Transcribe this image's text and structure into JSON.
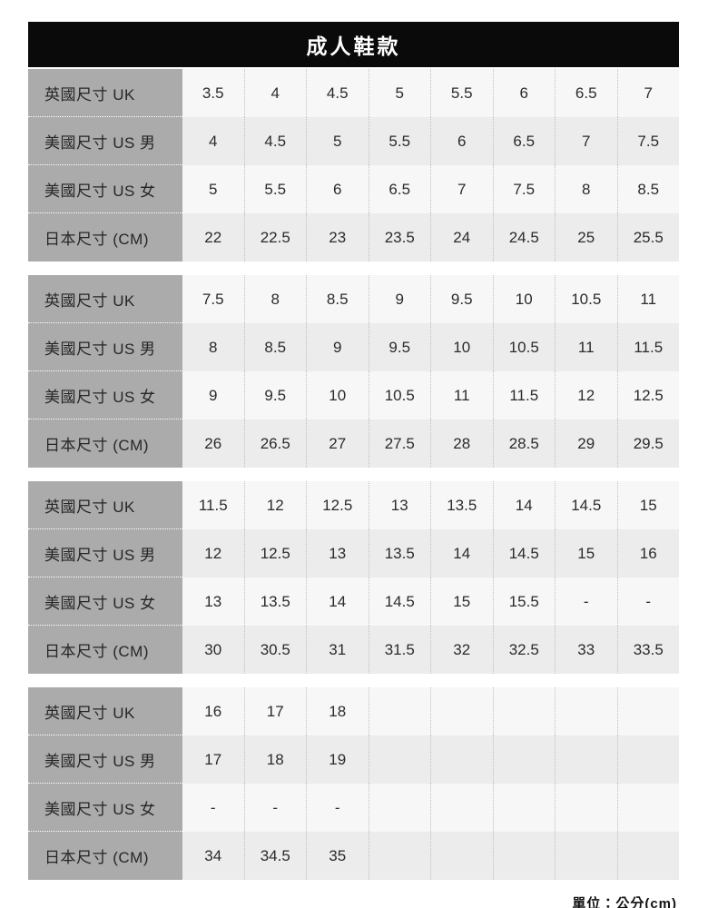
{
  "header": {
    "title": "成人鞋款"
  },
  "footer": {
    "unit_note": "單位：公分(cm)"
  },
  "colors": {
    "header_bg": "#0a0a0a",
    "header_text": "#ffffff",
    "label_bg": "#ababab",
    "label_text": "#262626",
    "row_odd_bg": "#f7f7f7",
    "row_even_bg": "#ececec",
    "divider": "#bfbfbf",
    "value_text": "#2b2b2b"
  },
  "chart_data": {
    "type": "table",
    "title": "成人鞋款",
    "unit_note": "單位：公分(cm)",
    "row_labels": [
      "英國尺寸 UK",
      "美國尺寸 US 男",
      "美國尺寸 US 女",
      "日本尺寸 (CM)"
    ],
    "row_keys": [
      "uk",
      "us-men",
      "us-women",
      "jp-cm"
    ],
    "columns_per_block": 8,
    "blocks": [
      [
        [
          "3.5",
          "4",
          "4.5",
          "5",
          "5.5",
          "6",
          "6.5",
          "7"
        ],
        [
          "4",
          "4.5",
          "5",
          "5.5",
          "6",
          "6.5",
          "7",
          "7.5"
        ],
        [
          "5",
          "5.5",
          "6",
          "6.5",
          "7",
          "7.5",
          "8",
          "8.5"
        ],
        [
          "22",
          "22.5",
          "23",
          "23.5",
          "24",
          "24.5",
          "25",
          "25.5"
        ]
      ],
      [
        [
          "7.5",
          "8",
          "8.5",
          "9",
          "9.5",
          "10",
          "10.5",
          "11"
        ],
        [
          "8",
          "8.5",
          "9",
          "9.5",
          "10",
          "10.5",
          "11",
          "11.5"
        ],
        [
          "9",
          "9.5",
          "10",
          "10.5",
          "11",
          "11.5",
          "12",
          "12.5"
        ],
        [
          "26",
          "26.5",
          "27",
          "27.5",
          "28",
          "28.5",
          "29",
          "29.5"
        ]
      ],
      [
        [
          "11.5",
          "12",
          "12.5",
          "13",
          "13.5",
          "14",
          "14.5",
          "15"
        ],
        [
          "12",
          "12.5",
          "13",
          "13.5",
          "14",
          "14.5",
          "15",
          "16"
        ],
        [
          "13",
          "13.5",
          "14",
          "14.5",
          "15",
          "15.5",
          "-",
          "-"
        ],
        [
          "30",
          "30.5",
          "31",
          "31.5",
          "32",
          "32.5",
          "33",
          "33.5"
        ]
      ],
      [
        [
          "16",
          "17",
          "18",
          "",
          "",
          "",
          "",
          ""
        ],
        [
          "17",
          "18",
          "19",
          "",
          "",
          "",
          "",
          ""
        ],
        [
          "-",
          "-",
          "-",
          "",
          "",
          "",
          "",
          ""
        ],
        [
          "34",
          "34.5",
          "35",
          "",
          "",
          "",
          "",
          ""
        ]
      ]
    ]
  }
}
